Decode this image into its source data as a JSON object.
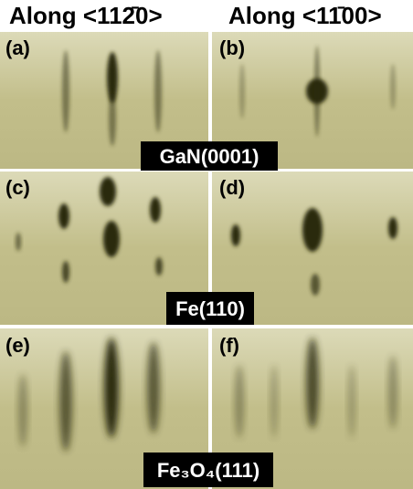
{
  "header": {
    "titles": [
      "Along <112̄0>",
      "Along <11̄00>"
    ]
  },
  "panels": [
    {
      "label": "(a)"
    },
    {
      "label": "(b)"
    },
    {
      "label": "(c)"
    },
    {
      "label": "(d)"
    },
    {
      "label": "(e)"
    },
    {
      "label": "(f)"
    }
  ],
  "materials": [
    "GaN(0001)",
    "Fe(110)",
    "Fe₃O₄(111)"
  ]
}
